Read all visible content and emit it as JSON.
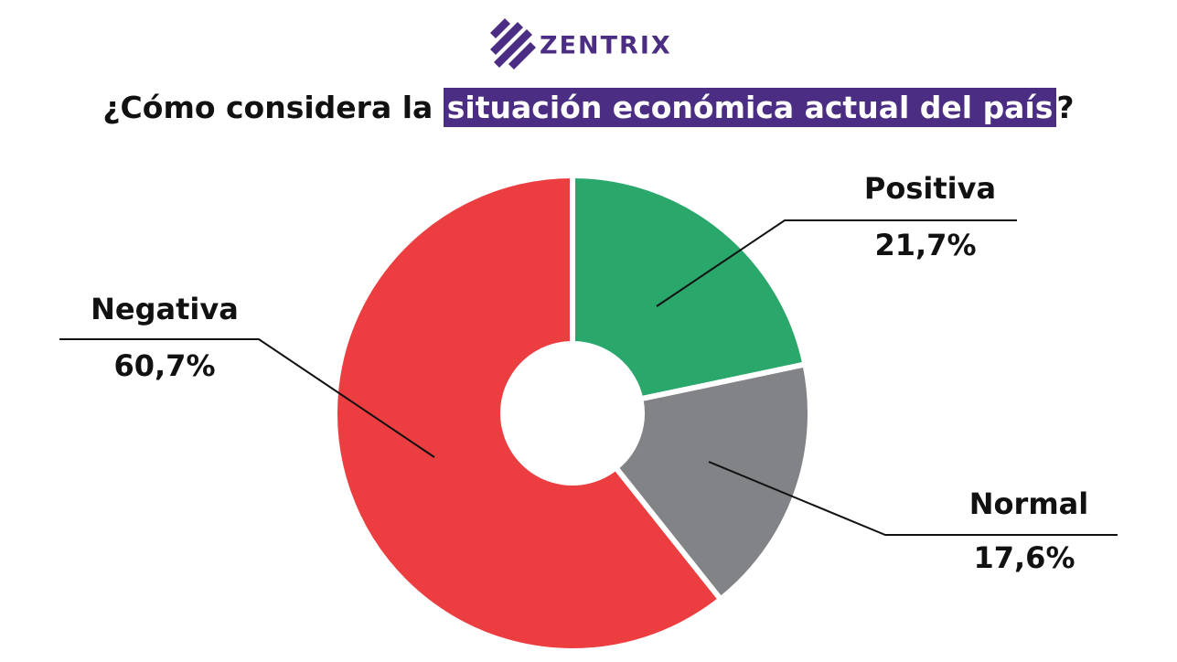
{
  "brand": "ZENTRIX",
  "chart_data": {
    "type": "pie",
    "title_parts": [
      "¿Cómo considera la ",
      "situación económica actual del país",
      "?"
    ],
    "categories": [
      "Positiva",
      "Normal",
      "Negativa"
    ],
    "values": [
      21.7,
      17.6,
      60.7
    ],
    "value_labels": [
      "21,7%",
      "17,6%",
      "60,7%"
    ],
    "colors": [
      "#2aa76a",
      "#818386",
      "#ec3e40"
    ],
    "donut": true
  }
}
